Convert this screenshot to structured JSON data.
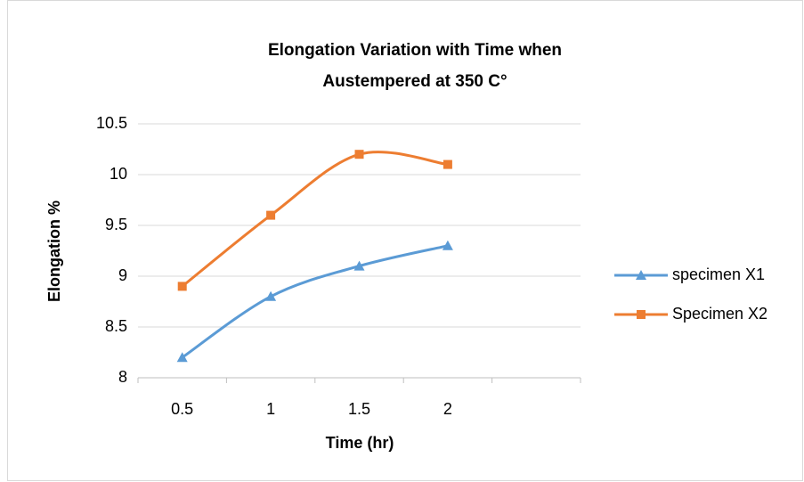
{
  "chart_data": {
    "type": "line",
    "title": [
      "Elongation Variation with Time when",
      "Austempered  at 350 C°"
    ],
    "x_label": "Time  (hr)",
    "y_label": "Elongation %",
    "categories": [
      "0.5",
      "1",
      "1.5",
      "2",
      null
    ],
    "series": [
      {
        "name": "specimen X1",
        "color": "#5b9bd5",
        "marker": "triangle",
        "values": [
          8.2,
          8.8,
          9.1,
          9.3,
          null
        ]
      },
      {
        "name": "Specimen X2",
        "color": "#ed7d31",
        "marker": "square",
        "values": [
          8.9,
          9.6,
          10.2,
          10.1,
          null
        ]
      }
    ],
    "ylim": [
      8,
      10.5
    ],
    "yticks": [
      8,
      8.5,
      9,
      9.5,
      10,
      10.5
    ],
    "grid": true,
    "smooth": true,
    "legend": "right"
  }
}
